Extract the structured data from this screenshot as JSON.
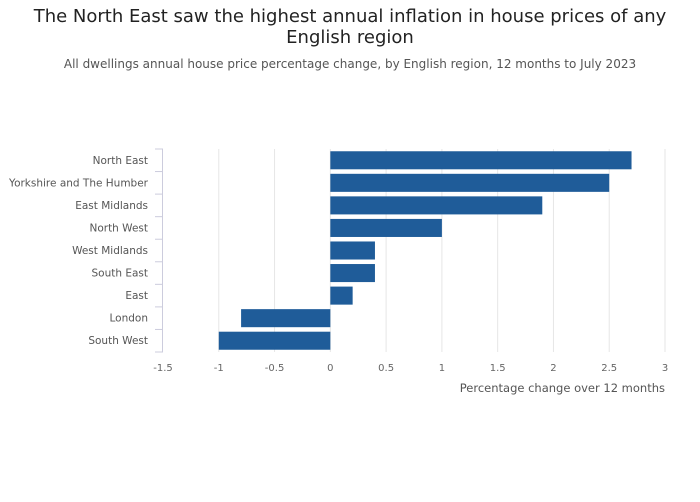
{
  "title": "The North East saw the highest annual inflation in house prices of any English region",
  "subtitle": "All dwellings annual house price percentage change, by English region, 12 months to July 2023",
  "colors": {
    "bar": "#1f5c99",
    "grid": "#e6e6e6",
    "axis_line": "#ccccdd"
  },
  "chart_data": {
    "type": "bar",
    "orientation": "horizontal",
    "categories": [
      "North East",
      "Yorkshire and The Humber",
      "East Midlands",
      "North West",
      "West Midlands",
      "South East",
      "East",
      "London",
      "South West"
    ],
    "values": [
      2.7,
      2.5,
      1.9,
      1.0,
      0.4,
      0.4,
      0.2,
      -0.8,
      -1.0
    ],
    "xlabel": "Percentage change over 12 months",
    "ylabel": "",
    "xlim": [
      -1.5,
      3
    ],
    "xticks": [
      -1.5,
      -1,
      -0.5,
      0,
      0.5,
      1,
      1.5,
      2,
      2.5,
      3
    ],
    "xtick_labels": [
      "-1.5",
      "-1",
      "-0.5",
      "0",
      "0.5",
      "1",
      "1.5",
      "2",
      "2.5",
      "3"
    ],
    "grid": true
  }
}
